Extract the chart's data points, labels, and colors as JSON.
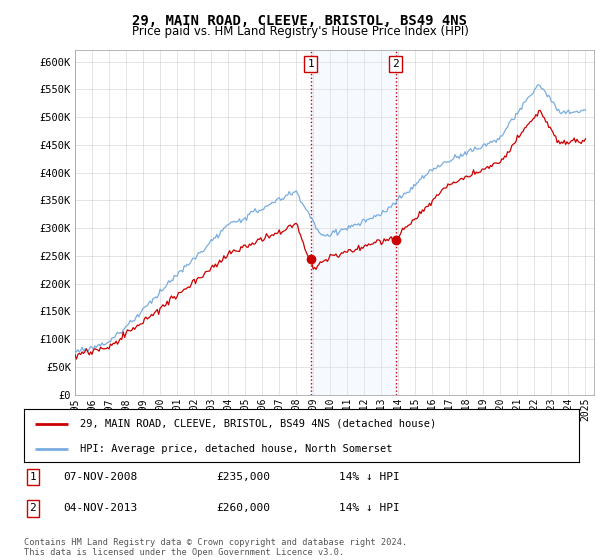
{
  "title": "29, MAIN ROAD, CLEEVE, BRISTOL, BS49 4NS",
  "subtitle": "Price paid vs. HM Land Registry's House Price Index (HPI)",
  "ylabel_ticks": [
    "£0",
    "£50K",
    "£100K",
    "£150K",
    "£200K",
    "£250K",
    "£300K",
    "£350K",
    "£400K",
    "£450K",
    "£500K",
    "£550K",
    "£600K"
  ],
  "ylim": [
    0,
    620000
  ],
  "ytick_vals": [
    0,
    50000,
    100000,
    150000,
    200000,
    250000,
    300000,
    350000,
    400000,
    450000,
    500000,
    550000,
    600000
  ],
  "sale1": {
    "date_label": "07-NOV-2008",
    "price": 235000,
    "hpi_diff": "14% ↓ HPI",
    "x": 2008.85
  },
  "sale2": {
    "date_label": "04-NOV-2013",
    "price": 260000,
    "hpi_diff": "14% ↓ HPI",
    "x": 2013.85
  },
  "legend_house": "29, MAIN ROAD, CLEEVE, BRISTOL, BS49 4NS (detached house)",
  "legend_hpi": "HPI: Average price, detached house, North Somerset",
  "footer": "Contains HM Land Registry data © Crown copyright and database right 2024.\nThis data is licensed under the Open Government Licence v3.0.",
  "house_color": "#cc0000",
  "hpi_color": "#7aade0",
  "shade_color": "#ddeeff",
  "marker1_x": 2008.85,
  "marker2_x": 2013.85,
  "xmin": 1995,
  "xmax": 2025.5
}
